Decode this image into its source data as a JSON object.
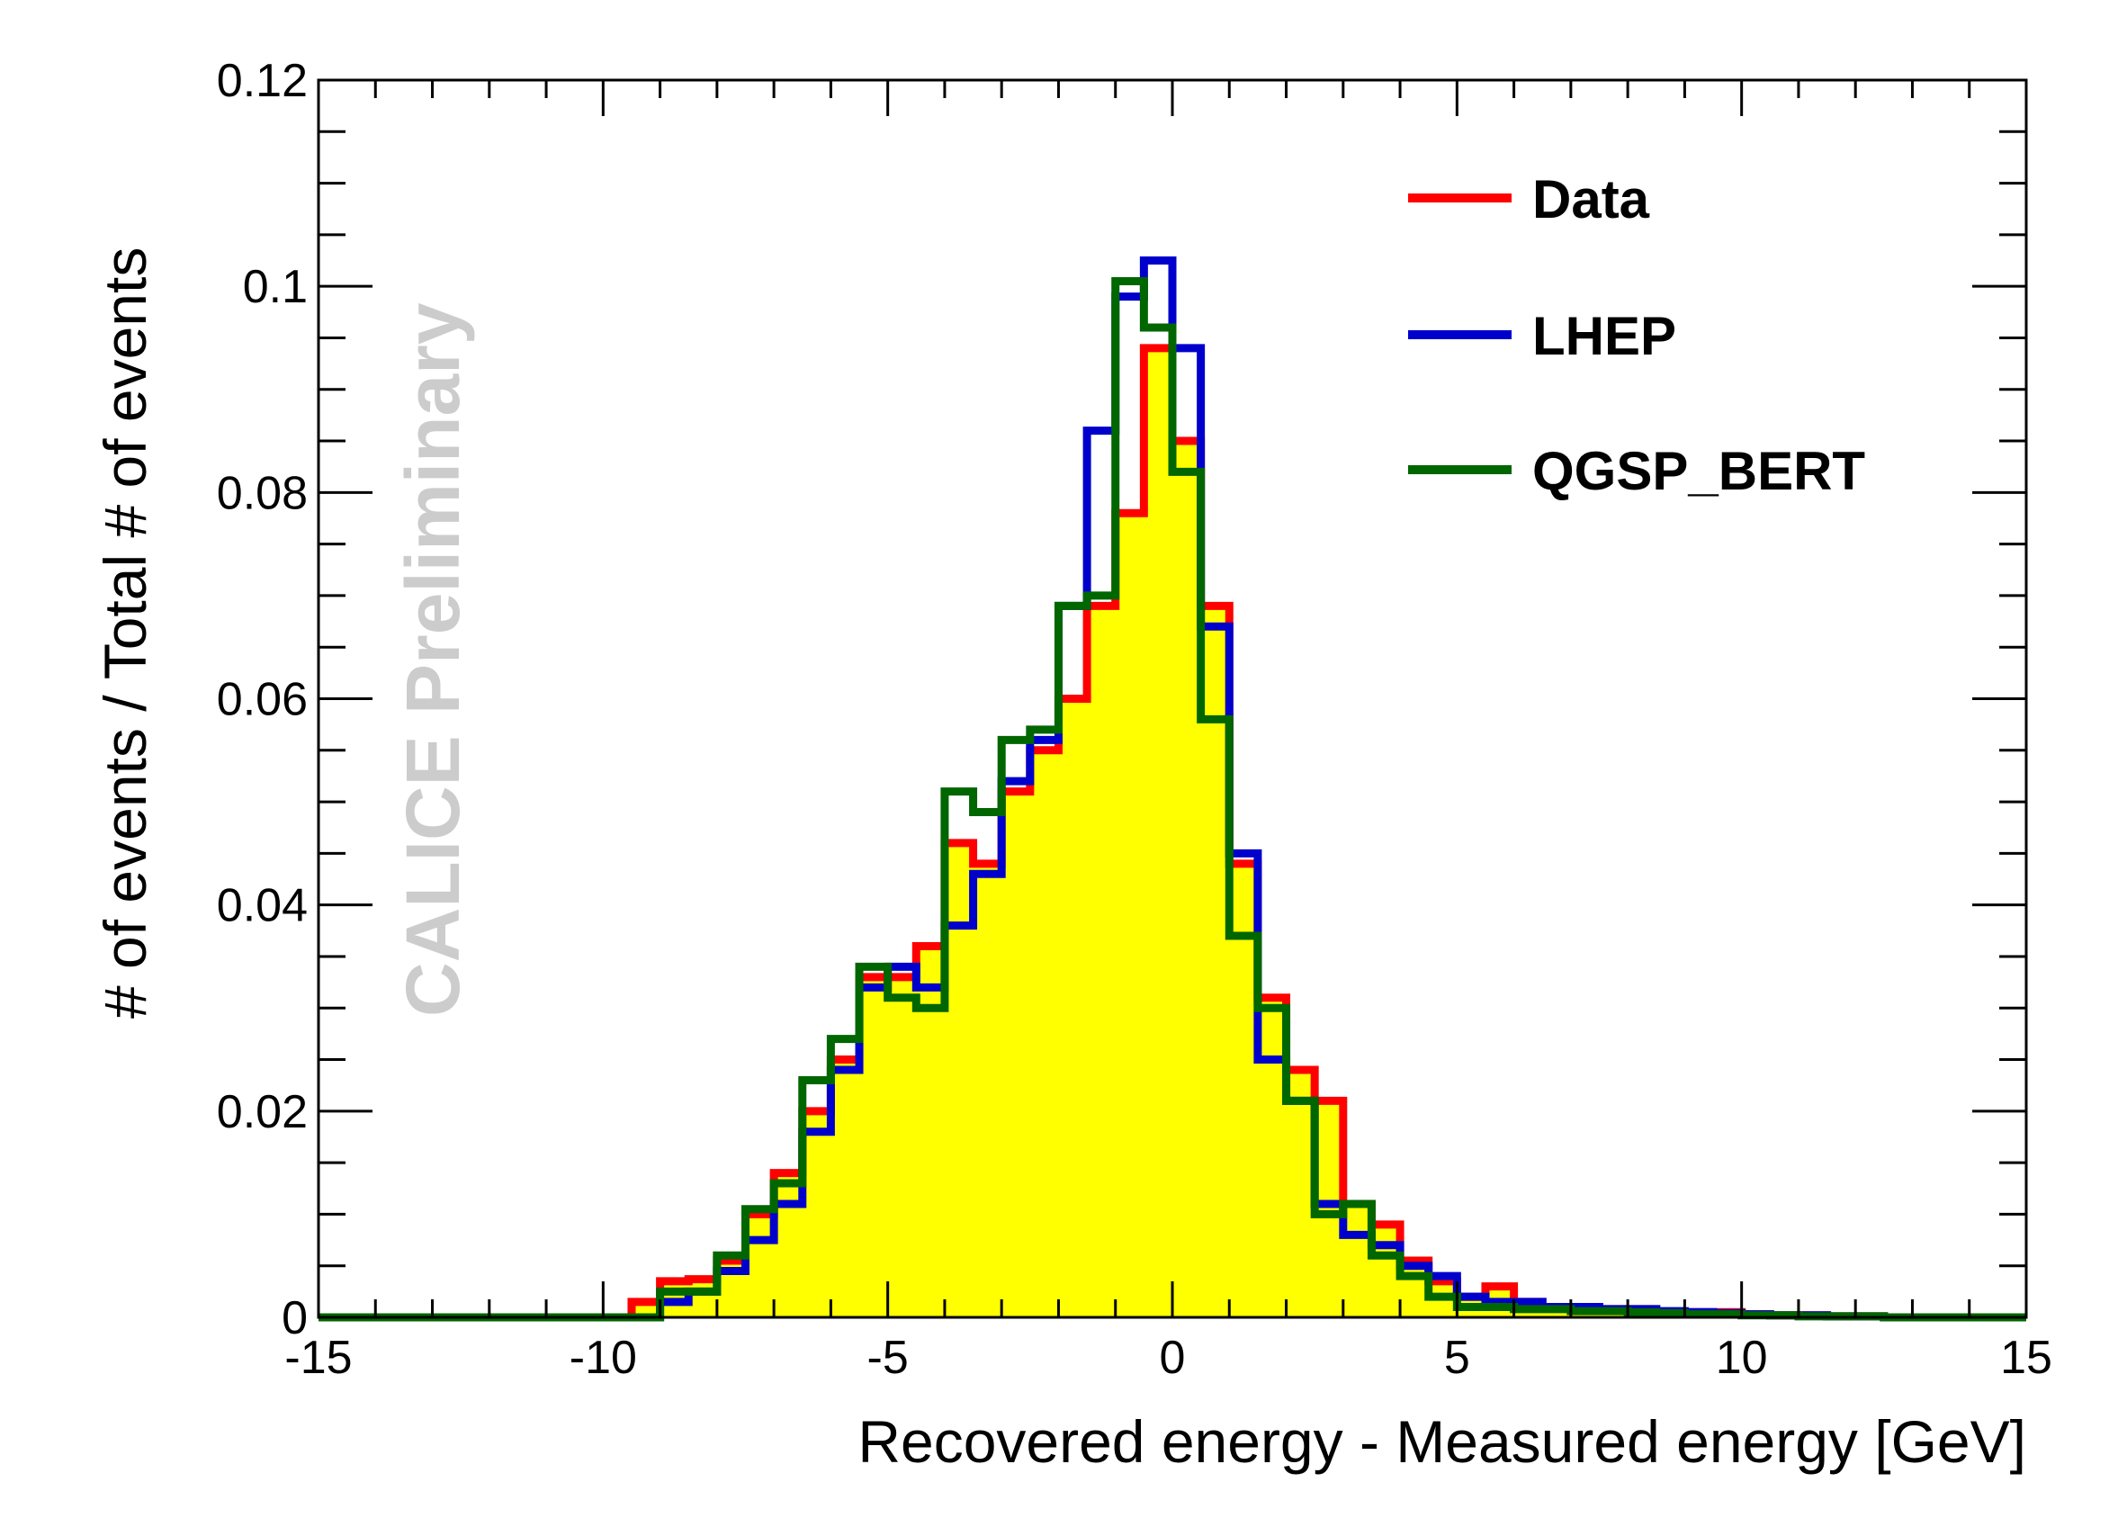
{
  "chart_data": {
    "type": "histogram",
    "title": "",
    "xlabel": "Recovered  energy - Measured  energy [GeV]",
    "ylabel": "# of events / Total # of events",
    "xlim": [
      -15,
      15
    ],
    "ylim": [
      0,
      0.12
    ],
    "x_ticks": [
      -15,
      -10,
      -5,
      0,
      5,
      10,
      15
    ],
    "x_tick_labels": [
      "-15",
      "-10",
      "-5",
      "0",
      "5",
      "10",
      "15"
    ],
    "y_ticks": [
      0,
      0.02,
      0.04,
      0.06,
      0.08,
      0.1,
      0.12
    ],
    "y_tick_labels": [
      "0",
      "0.02",
      "0.04",
      "0.06",
      "0.08",
      "0.1",
      "0.12"
    ],
    "watermark": "CALICE Preliminary",
    "legend_position": "top-right",
    "bin_edges": [
      -15,
      -14.5,
      -14,
      -13.5,
      -13,
      -12.5,
      -12,
      -11.5,
      -11,
      -10.5,
      -10,
      -9.5,
      -9,
      -8.5,
      -8,
      -7.5,
      -7,
      -6.5,
      -6,
      -5.5,
      -5,
      -4.5,
      -4,
      -3.5,
      -3,
      -2.5,
      -2,
      -1.5,
      -1,
      -0.5,
      0,
      0.5,
      1,
      1.5,
      2,
      2.5,
      3,
      3.5,
      4,
      4.5,
      5,
      5.5,
      6,
      6.5,
      7,
      7.5,
      8,
      8.5,
      9,
      9.5,
      10,
      10.5,
      11,
      11.5,
      12,
      12.5,
      13,
      13.5,
      14,
      14.5,
      15
    ],
    "series": [
      {
        "name": "Data",
        "color": "#ff0000",
        "fill": "#ffff00",
        "values": [
          0,
          0,
          0,
          0,
          0,
          0,
          0,
          0,
          0,
          0,
          0,
          0.0015,
          0.0035,
          0.0037,
          0.0055,
          0.01,
          0.014,
          0.02,
          0.025,
          0.033,
          0.033,
          0.036,
          0.046,
          0.044,
          0.051,
          0.055,
          0.06,
          0.069,
          0.078,
          0.094,
          0.085,
          0.069,
          0.044,
          0.031,
          0.024,
          0.021,
          0.011,
          0.009,
          0.0055,
          0.0035,
          0.002,
          0.003,
          0.0015,
          0.001,
          0.001,
          0.0008,
          0.0008,
          0.0005,
          0.0005,
          0.0005,
          0.0003,
          0.0002,
          0.0002,
          0.0001,
          0.0001,
          0,
          0,
          0,
          0,
          0
        ]
      },
      {
        "name": "LHEP",
        "color": "#0000cc",
        "fill": "none",
        "values": [
          0,
          0,
          0,
          0,
          0,
          0,
          0,
          0,
          0,
          0,
          0,
          0,
          0.0015,
          0.0025,
          0.0045,
          0.0075,
          0.011,
          0.018,
          0.024,
          0.032,
          0.034,
          0.032,
          0.038,
          0.043,
          0.052,
          0.056,
          0.069,
          0.086,
          0.099,
          0.1025,
          0.094,
          0.067,
          0.045,
          0.025,
          0.021,
          0.011,
          0.008,
          0.007,
          0.005,
          0.004,
          0.002,
          0.0015,
          0.0015,
          0.001,
          0.001,
          0.0008,
          0.0008,
          0.0006,
          0.0005,
          0.0004,
          0.0003,
          0.0002,
          0.0002,
          0.0001,
          0.0001,
          0,
          0,
          0,
          0,
          0
        ]
      },
      {
        "name": "QGSP_BERT",
        "color": "#006600",
        "fill": "none",
        "values": [
          0,
          0,
          0,
          0,
          0,
          0,
          0,
          0,
          0,
          0,
          0,
          0,
          0.0025,
          0.0025,
          0.006,
          0.0105,
          0.013,
          0.023,
          0.027,
          0.034,
          0.031,
          0.03,
          0.051,
          0.049,
          0.056,
          0.057,
          0.069,
          0.07,
          0.1005,
          0.096,
          0.082,
          0.058,
          0.037,
          0.03,
          0.021,
          0.01,
          0.011,
          0.006,
          0.004,
          0.002,
          0.001,
          0.001,
          0.0008,
          0.0008,
          0.0006,
          0.0006,
          0.0005,
          0.0004,
          0.0003,
          0.0003,
          0.0002,
          0.0002,
          0.0001,
          0.0001,
          0.0001,
          0,
          0,
          0,
          0,
          0
        ]
      }
    ]
  }
}
